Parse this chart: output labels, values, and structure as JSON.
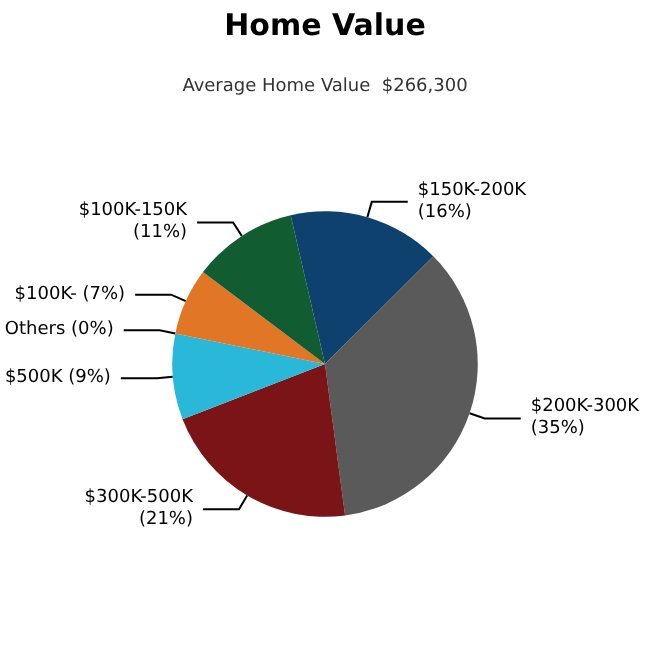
{
  "chart_data": {
    "type": "pie",
    "title": "Home Value",
    "subtitle": "Average Home Value  $266,300",
    "categories": [
      "$150K-200K",
      "$200K-300K",
      "$300K-500K",
      "$500K",
      "Others",
      "$100K-",
      "$100K-150K"
    ],
    "values": [
      16,
      35,
      21,
      9,
      0,
      7,
      11
    ],
    "value_labels": [
      "(16%)",
      "(35%)",
      "(21%)",
      "(9%)",
      "(0%)",
      "(7%)",
      "(11%)"
    ],
    "colors": [
      "#0f416e",
      "#5a5a5a",
      "#7b1416",
      "#2ab8d8",
      "#8a8a8a",
      "#e07626",
      "#125c32"
    ]
  }
}
